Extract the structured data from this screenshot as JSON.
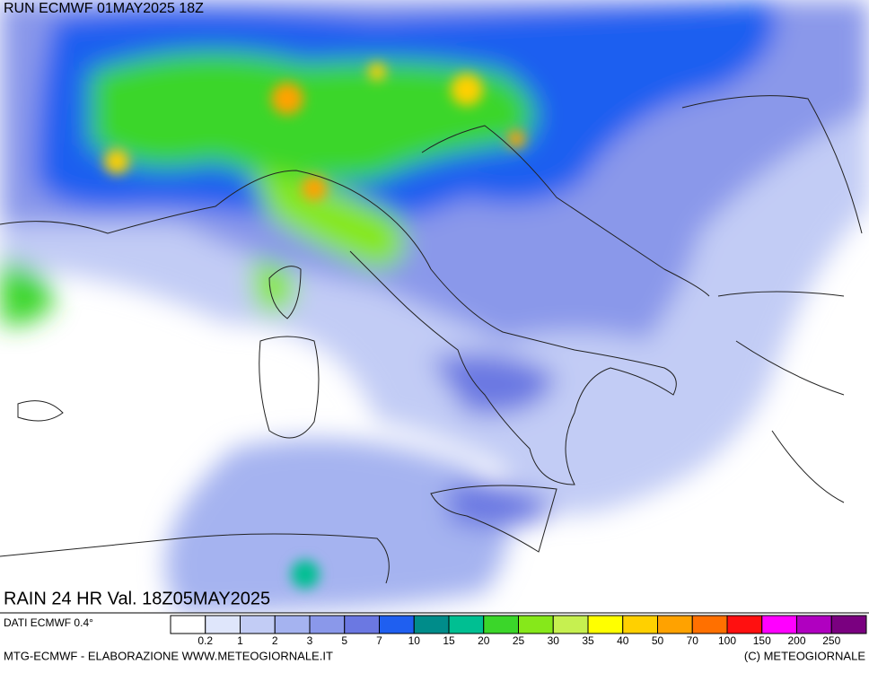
{
  "header": {
    "run": "RUN ECMWF 01MAY2025 18Z"
  },
  "map": {
    "title": "RAIN 24 HR Val. 18Z05MAY2025",
    "source": "DATI ECMWF 0.4°"
  },
  "legend": {
    "levels": [
      0.2,
      1,
      2,
      3,
      5,
      7,
      10,
      15,
      20,
      25,
      30,
      35,
      40,
      50,
      70,
      100,
      150,
      200,
      250
    ],
    "colors": [
      "#ffffff",
      "#dfe6fb",
      "#c2ccf5",
      "#a5b3f0",
      "#8a98ea",
      "#6b78e2",
      "#1f5ff0",
      "#008c8a",
      "#00bf92",
      "#3bd62a",
      "#86e81a",
      "#c6f050",
      "#ffff00",
      "#ffd000",
      "#ffa200",
      "#ff7000",
      "#ff1010",
      "#ff00ff",
      "#b000c0",
      "#7a0080"
    ]
  },
  "footer": {
    "left": "MTG-ECMWF - ELABORAZIONE WWW.METEOGIORNALE.IT",
    "right": "(C) METEOGIORNALE"
  }
}
